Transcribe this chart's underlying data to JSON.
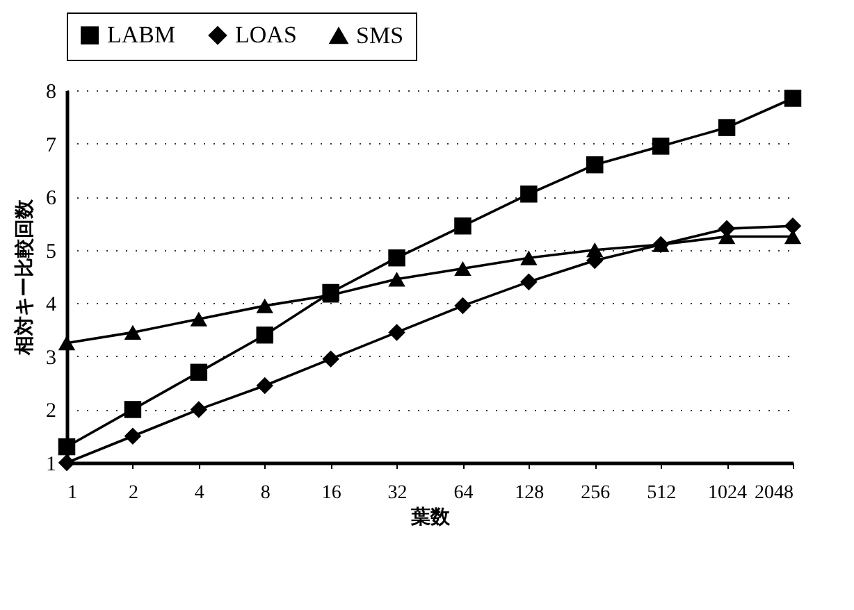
{
  "chart_data": {
    "type": "line",
    "xlabel": "葉数",
    "ylabel": "相対キー比較回数",
    "categories": [
      "1",
      "2",
      "4",
      "8",
      "16",
      "32",
      "64",
      "128",
      "256",
      "512",
      "1024",
      "2048"
    ],
    "series": [
      {
        "name": "LABM",
        "color": "#000000",
        "marker": "square",
        "values": [
          1.3,
          2.0,
          2.7,
          3.4,
          4.2,
          4.85,
          5.45,
          6.05,
          6.6,
          6.95,
          7.3,
          7.85
        ]
      },
      {
        "name": "LOAS",
        "color": "#000000",
        "marker": "diamond",
        "values": [
          1.0,
          1.5,
          2.0,
          2.45,
          2.95,
          3.45,
          3.95,
          4.4,
          4.8,
          5.1,
          5.4,
          5.45
        ]
      },
      {
        "name": "SMS",
        "color": "#000000",
        "marker": "triangle",
        "values": [
          3.25,
          3.45,
          3.7,
          3.95,
          4.15,
          4.45,
          4.65,
          4.85,
          5.0,
          5.1,
          5.25,
          5.25
        ]
      }
    ],
    "ylim": [
      1,
      8
    ],
    "yticks": [
      1,
      2,
      3,
      4,
      5,
      6,
      7,
      8
    ],
    "grid": "y",
    "legend": "top",
    "line_style": "solid"
  }
}
